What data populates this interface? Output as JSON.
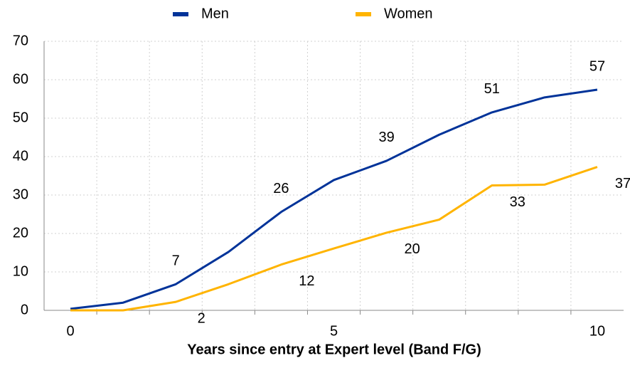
{
  "chart_data": {
    "type": "line",
    "x_label": "Years since entry at Expert level (Band F/G)",
    "x": [
      0,
      1,
      2,
      3,
      4,
      5,
      6,
      7,
      8,
      9,
      10
    ],
    "series": [
      {
        "name": "Men",
        "color": "#003399",
        "values": [
          0.4,
          2,
          6.8,
          15.2,
          25.6,
          33.9,
          38.9,
          45.7,
          51.5,
          55.4,
          57.4
        ],
        "value_labels": [
          "",
          null,
          "7",
          null,
          "26",
          null,
          "39",
          null,
          "51",
          null,
          "57"
        ]
      },
      {
        "name": "Women",
        "color": "#ffb400",
        "values": [
          0,
          0,
          2.2,
          6.8,
          11.9,
          16.1,
          20.2,
          23.6,
          32.5,
          32.7,
          37.3
        ],
        "value_labels": [
          null,
          null,
          "2",
          null,
          "12",
          null,
          "20",
          null,
          "33",
          null,
          "37"
        ]
      }
    ],
    "xlim": [
      -0.5,
      10.5
    ],
    "xticks": [
      0,
      5,
      10
    ],
    "xminor_ticks": [
      0.5,
      1.5,
      2.5,
      3.5,
      4.5,
      5.5,
      6.5,
      7.5,
      8.5,
      9.5
    ],
    "ylim": [
      0,
      70
    ],
    "yticks": [
      0,
      10,
      20,
      30,
      40,
      50,
      60,
      70
    ],
    "grid": true,
    "legend": "top"
  }
}
